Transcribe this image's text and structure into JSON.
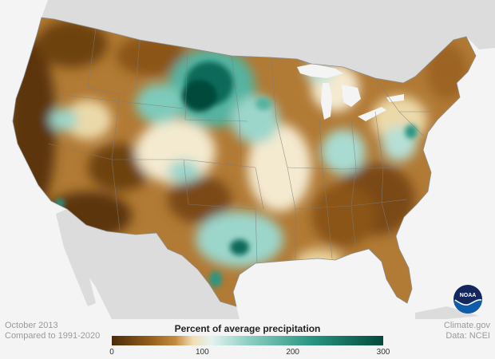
{
  "map": {
    "title": "Percent of average precipitation",
    "date": "October 2013",
    "baseline": "Compared to 1991-2020",
    "credit": "Climate.gov",
    "source": "Data: NCEI",
    "logo_text": "NOAA",
    "legend": {
      "ticks": [
        "0",
        "100",
        "200",
        "300"
      ],
      "tick_values": [
        0,
        100,
        200,
        300
      ],
      "range": [
        0,
        300
      ],
      "stops": [
        {
          "value": 0,
          "color": "#4a2b0c"
        },
        {
          "value": 40,
          "color": "#8f5a18"
        },
        {
          "value": 70,
          "color": "#c48a3e"
        },
        {
          "value": 90,
          "color": "#f1dfb6"
        },
        {
          "value": 110,
          "color": "#e4f2ef"
        },
        {
          "value": 150,
          "color": "#8fd0c4"
        },
        {
          "value": 220,
          "color": "#2a9583"
        },
        {
          "value": 300,
          "color": "#024a3b"
        }
      ]
    },
    "colors": {
      "very_dry": "#5b350d",
      "dry": "#a8702a",
      "moderate_dry": "#d6ab6b",
      "near_normal": "#f4ead0",
      "wet": "#9cd6cb",
      "very_wet": "#0b6b5a",
      "land_outside": "#dcdcdc",
      "water": "#f4f4f4",
      "noaa_blue": "#0f5ca8",
      "noaa_navy": "#13265e"
    }
  }
}
